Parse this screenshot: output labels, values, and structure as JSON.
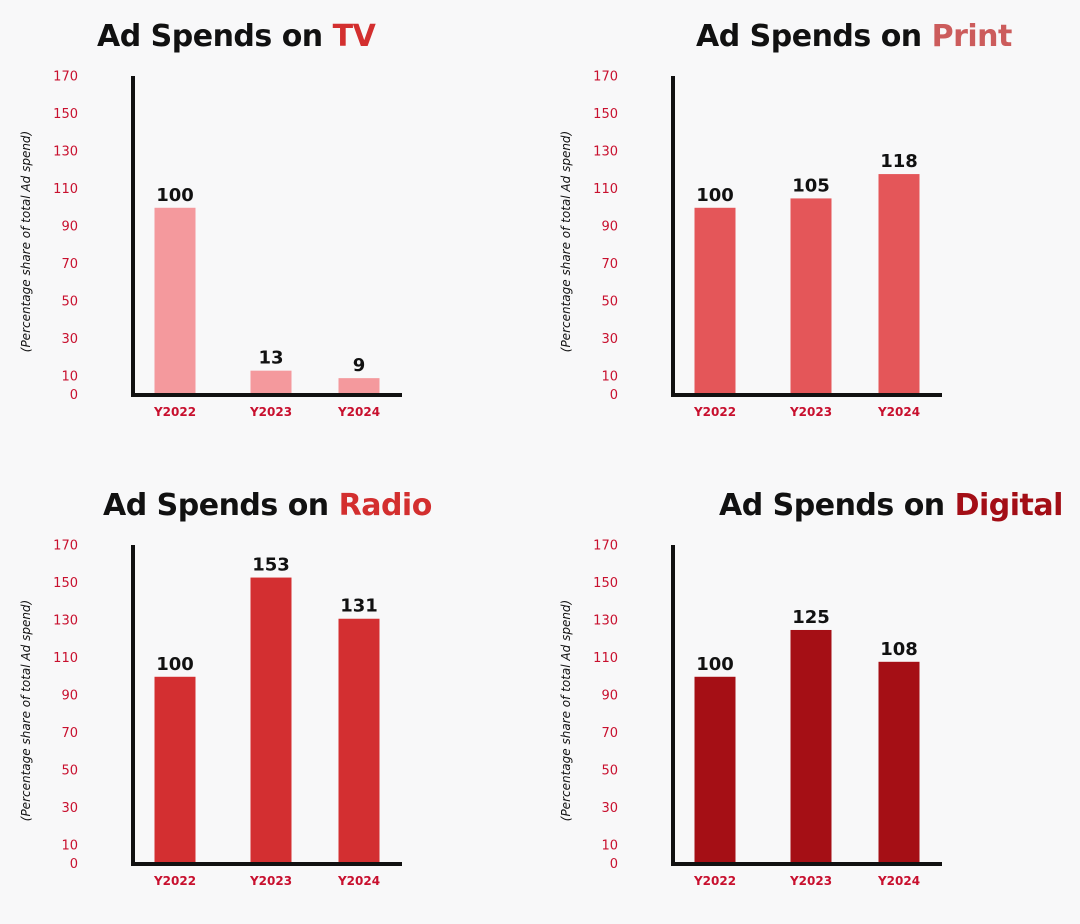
{
  "colors": {
    "axis": "#111111",
    "tick": "#c8102e",
    "value_label": "#111111",
    "title_text": "#111111",
    "background": "#f8f8f9"
  },
  "chart_data": [
    {
      "type": "bar",
      "title_prefix": "Ad Spends on ",
      "title_highlight": "TV",
      "highlight_color": "#d32f2f",
      "bar_color": "#f4999d",
      "categories": [
        "Y2022",
        "Y2023",
        "Y2024"
      ],
      "values": [
        100,
        13,
        9
      ],
      "ylabel": "(Percentage share of total Ad spend)",
      "yticks": [
        0,
        10,
        30,
        50,
        70,
        90,
        110,
        130,
        150,
        170
      ],
      "ylim": [
        0,
        180
      ],
      "grid": false
    },
    {
      "type": "bar",
      "title_prefix": "Ad Spends on ",
      "title_highlight": "Print",
      "highlight_color": "#cc5c5c",
      "bar_color": "#e45659",
      "categories": [
        "Y2022",
        "Y2023",
        "Y2024"
      ],
      "values": [
        100,
        105,
        118
      ],
      "ylabel": "(Percentage share of total Ad spend)",
      "yticks": [
        0,
        10,
        30,
        50,
        70,
        90,
        110,
        130,
        150,
        170
      ],
      "ylim": [
        0,
        180
      ],
      "grid": false
    },
    {
      "type": "bar",
      "title_prefix": "Ad Spends on ",
      "title_highlight": "Radio",
      "highlight_color": "#d32f2f",
      "bar_color": "#d32f31",
      "categories": [
        "Y2022",
        "Y2023",
        "Y2024"
      ],
      "values": [
        100,
        153,
        131
      ],
      "ylabel": "(Percentage share of total Ad spend)",
      "yticks": [
        0,
        10,
        30,
        50,
        70,
        90,
        110,
        130,
        150,
        170
      ],
      "ylim": [
        0,
        180
      ],
      "grid": false
    },
    {
      "type": "bar",
      "title_prefix": "Ad Spends on ",
      "title_highlight": "Digital",
      "highlight_color": "#a30e16",
      "bar_color": "#a50f15",
      "categories": [
        "Y2022",
        "Y2023",
        "Y2024"
      ],
      "values": [
        100,
        125,
        108
      ],
      "ylabel": "(Percentage share of total Ad spend)",
      "yticks": [
        0,
        10,
        30,
        50,
        70,
        90,
        110,
        130,
        150,
        170
      ],
      "ylim": [
        0,
        180
      ],
      "grid": false
    }
  ]
}
